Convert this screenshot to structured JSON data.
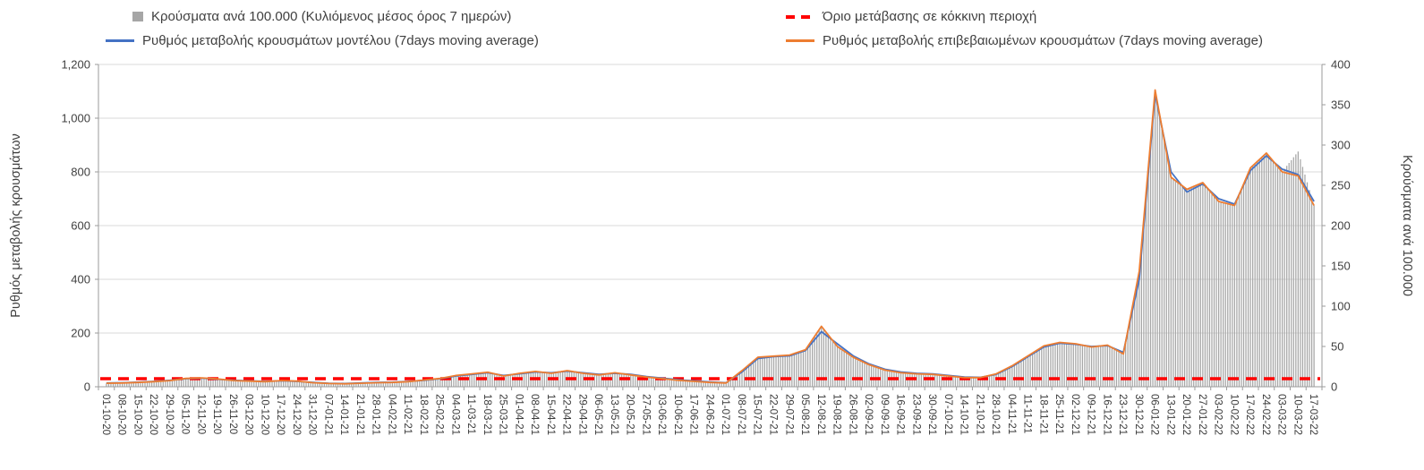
{
  "legend": {
    "items": [
      {
        "label": "Κρούσματα ανά 100.000 (Κυλιόμενος μέσος όρος 7 ημερών)",
        "type": "bar",
        "color": "#a6a6a6"
      },
      {
        "label": "Όριο μετάβασης σε κόκκινη περιοχή",
        "type": "dashed",
        "color": "#ff0000"
      },
      {
        "label": "Ρυθμός μεταβολής κρουσμάτων μοντέλου (7days moving average)",
        "type": "line",
        "color": "#4472c4"
      },
      {
        "label": "Ρυθμός μεταβολής επιβεβαιωμένων κρουσμάτων (7days moving average)",
        "type": "line",
        "color": "#ed7d31"
      }
    ]
  },
  "axes": {
    "left": {
      "title": "Ρυθμός μεταβολής κρουσμάτων",
      "tick_labels": [
        "0",
        "200",
        "400",
        "600",
        "800",
        "1,000",
        "1,200"
      ],
      "tick_values": [
        0,
        200,
        400,
        600,
        800,
        1000,
        1200
      ]
    },
    "right": {
      "title": "Κρούσματα ανά 100.000",
      "tick_labels": [
        "0",
        "50",
        "100",
        "150",
        "200",
        "250",
        "300",
        "350",
        "400"
      ],
      "tick_values": [
        0,
        50,
        100,
        150,
        200,
        250,
        300,
        350,
        400
      ]
    }
  },
  "chart_data": {
    "type": "combo",
    "ylim_left": [
      0,
      1200
    ],
    "ylim_right": [
      0,
      400
    ],
    "grid": "horizontal",
    "legend_position": "top",
    "x": [
      "01-10-20",
      "08-10-20",
      "15-10-20",
      "22-10-20",
      "29-10-20",
      "05-11-20",
      "12-11-20",
      "19-11-20",
      "26-11-20",
      "03-12-20",
      "10-12-20",
      "17-12-20",
      "24-12-20",
      "31-12-20",
      "07-01-21",
      "14-01-21",
      "21-01-21",
      "28-01-21",
      "04-02-21",
      "11-02-21",
      "18-02-21",
      "25-02-21",
      "04-03-21",
      "11-03-21",
      "18-03-21",
      "25-03-21",
      "01-04-21",
      "08-04-21",
      "15-04-21",
      "22-04-21",
      "29-04-21",
      "06-05-21",
      "13-05-21",
      "20-05-21",
      "27-05-21",
      "03-06-21",
      "10-06-21",
      "17-06-21",
      "24-06-21",
      "01-07-21",
      "08-07-21",
      "15-07-21",
      "22-07-21",
      "29-07-21",
      "05-08-21",
      "12-08-21",
      "19-08-21",
      "26-08-21",
      "02-09-21",
      "09-09-21",
      "16-09-21",
      "23-09-21",
      "30-09-21",
      "07-10-21",
      "14-10-21",
      "21-10-21",
      "28-10-21",
      "04-11-21",
      "11-11-21",
      "18-11-21",
      "25-11-21",
      "02-12-21",
      "09-12-21",
      "16-12-21",
      "23-12-21",
      "30-12-21",
      "06-01-22",
      "13-01-22",
      "20-01-22",
      "27-01-22",
      "03-02-22",
      "10-02-22",
      "17-02-22",
      "24-02-22",
      "03-03-22",
      "10-03-22",
      "17-03-22"
    ],
    "series": [
      {
        "name": "Ρυθμός μεταβολής κρουσμάτων μοντέλου (7days moving average)",
        "type": "line",
        "axis": "left",
        "color": "#4472c4",
        "values": [
          14,
          15,
          17,
          20,
          24,
          30,
          32,
          28,
          24,
          22,
          20,
          22,
          20,
          16,
          13,
          12,
          14,
          16,
          17,
          20,
          24,
          30,
          40,
          46,
          52,
          42,
          48,
          55,
          52,
          58,
          52,
          46,
          50,
          46,
          38,
          32,
          26,
          22,
          18,
          15,
          55,
          105,
          112,
          115,
          135,
          205,
          160,
          115,
          85,
          65,
          55,
          50,
          48,
          42,
          36,
          35,
          46,
          75,
          112,
          148,
          162,
          158,
          150,
          153,
          128,
          400,
          1090,
          800,
          725,
          755,
          700,
          680,
          805,
          860,
          810,
          790,
          690
        ]
      },
      {
        "name": "Ρυθμός μεταβολής επιβεβαιωμένων κρουσμάτων (7days moving average)",
        "type": "line",
        "axis": "left",
        "color": "#ed7d31",
        "values": [
          13,
          14,
          16,
          19,
          23,
          31,
          33,
          29,
          23,
          21,
          19,
          23,
          21,
          15,
          12,
          11,
          13,
          15,
          16,
          19,
          25,
          31,
          42,
          48,
          54,
          40,
          50,
          57,
          50,
          60,
          50,
          44,
          52,
          44,
          36,
          30,
          24,
          20,
          16,
          14,
          60,
          110,
          114,
          118,
          138,
          225,
          150,
          110,
          82,
          62,
          52,
          48,
          46,
          40,
          34,
          34,
          48,
          78,
          115,
          152,
          165,
          160,
          148,
          155,
          122,
          430,
          1105,
          780,
          735,
          760,
          690,
          675,
          815,
          870,
          800,
          785,
          675
        ]
      },
      {
        "name": "Κρούσματα ανά 100.000 (Κυλιόμενος μέσος όρος 7 ημερών)",
        "type": "bar",
        "axis": "right",
        "color": "#a6a6a6",
        "values": [
          4,
          5,
          5,
          6,
          8,
          10,
          11,
          10,
          8,
          7,
          6,
          8,
          7,
          5,
          4,
          4,
          4,
          5,
          5,
          6,
          8,
          10,
          14,
          16,
          18,
          13,
          17,
          19,
          17,
          20,
          17,
          15,
          17,
          15,
          12,
          10,
          8,
          7,
          5,
          5,
          20,
          37,
          38,
          39,
          46,
          75,
          50,
          37,
          27,
          21,
          17,
          16,
          15,
          13,
          11,
          11,
          16,
          26,
          38,
          51,
          55,
          53,
          49,
          52,
          41,
          143,
          368,
          260,
          245,
          253,
          230,
          225,
          272,
          290,
          267,
          292,
          225
        ]
      },
      {
        "name": "Όριο μετάβασης σε κόκκινη περιοχή",
        "type": "threshold",
        "axis": "left",
        "color": "#ff0000",
        "value": 30
      }
    ]
  }
}
